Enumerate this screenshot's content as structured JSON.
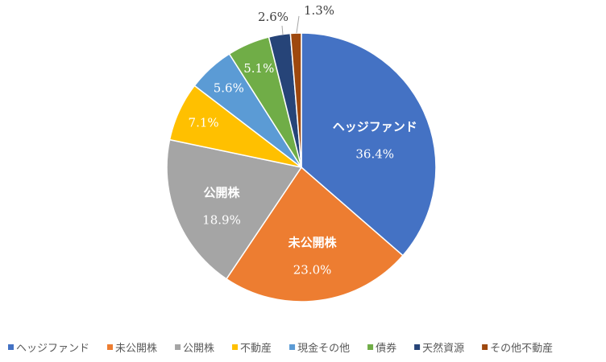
{
  "chart_data": {
    "type": "pie",
    "title": "",
    "start_angle_deg": 0,
    "direction": "clockwise",
    "legend_position": "bottom",
    "categories": [
      "ヘッジファンド",
      "未公開株",
      "公開株",
      "不動産",
      "現金その他",
      "債券",
      "天然資源",
      "その他不動産"
    ],
    "values": [
      36.4,
      23.0,
      18.9,
      7.1,
      5.6,
      5.1,
      2.6,
      1.3
    ],
    "data_labels": [
      "36.4%",
      "23.0%",
      "18.9%",
      "7.1%",
      "5.6%",
      "5.1%",
      "2.6%",
      "1.3%"
    ],
    "category_label_shown": [
      true,
      true,
      true,
      false,
      false,
      false,
      false,
      false
    ],
    "colors": [
      "#4472C4",
      "#ED7D31",
      "#A5A5A5",
      "#FFC000",
      "#5B9BD5",
      "#70AD47",
      "#264478",
      "#9E480E"
    ],
    "label_colors": [
      "#ffffff",
      "#ffffff",
      "#ffffff",
      "#ffffff",
      "#ffffff",
      "#ffffff",
      "#404040",
      "#404040"
    ]
  }
}
